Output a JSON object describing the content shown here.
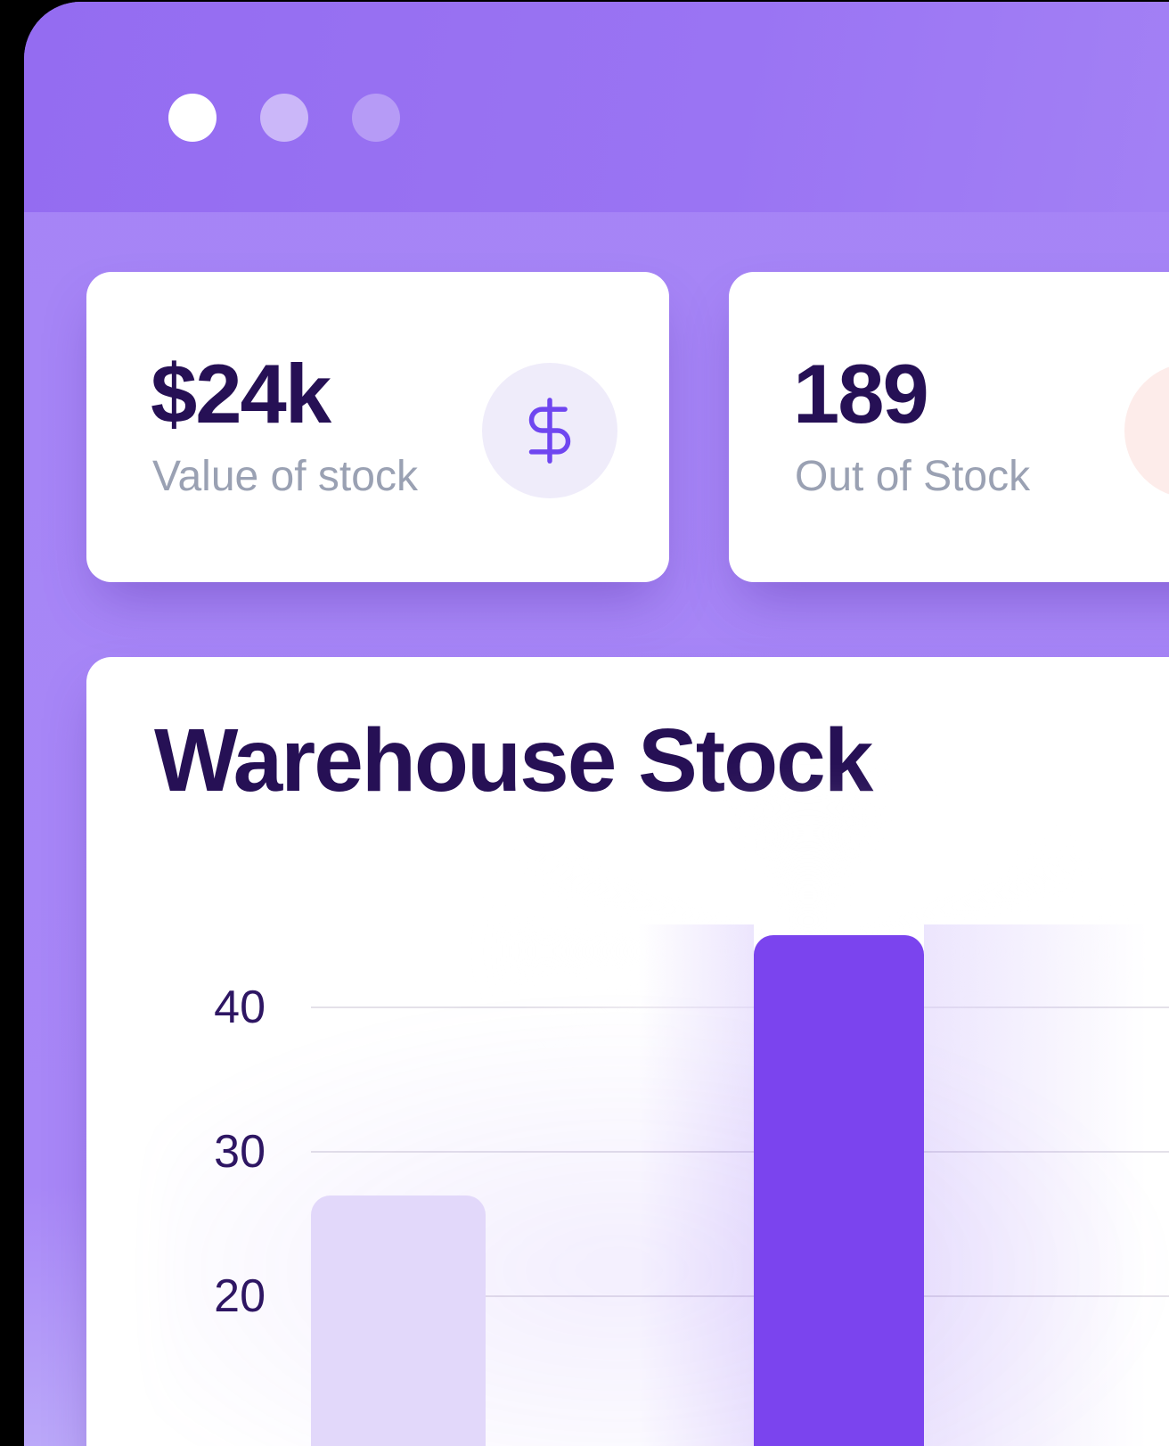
{
  "page": {
    "background": "#000000"
  },
  "window": {
    "titlebar": {
      "dots": [
        {
          "name": "window-dot-1",
          "color": "#ffffff"
        },
        {
          "name": "window-dot-2",
          "color": "rgba(255,255,255,0.5)"
        },
        {
          "name": "window-dot-3",
          "color": "rgba(255,255,255,0.3)"
        }
      ],
      "color": "#9a73f3"
    },
    "body_color": "#a685f7"
  },
  "colors": {
    "heading": "#261055",
    "muted_label": "#9aa1b3",
    "tick": "#2e1663",
    "gridline": "#e4e1e9",
    "card_bg": "#ffffff",
    "accent_purple": "#7b44ee"
  },
  "stat_cards": [
    {
      "value": "$24k",
      "label": "Value of stock",
      "icon": "dollar-icon",
      "icon_bg": "#efecfa",
      "icon_color": "#6f46f0"
    },
    {
      "value": "189",
      "label": "Out of Stock",
      "icon": "out-of-stock-icon",
      "icon_bg": "#fdecea"
    }
  ],
  "chart": {
    "title": "Warehouse Stock"
  },
  "chart_data": {
    "type": "bar",
    "title": "Warehouse Stock",
    "categories": [
      "",
      ""
    ],
    "values": [
      27,
      45
    ],
    "bar_colors": [
      "#e2d8fa",
      "#7b44ee"
    ],
    "xlabel": "",
    "ylabel": "",
    "y_ticks": [
      40,
      30,
      20
    ],
    "y_tick_labels": [
      "40",
      "30",
      "20"
    ],
    "ylim_visible": [
      14,
      50
    ],
    "grid": true,
    "legend": false,
    "note": "bars and x-axis labels cropped at bottom edge of screenshot; values estimated from gridlines"
  }
}
